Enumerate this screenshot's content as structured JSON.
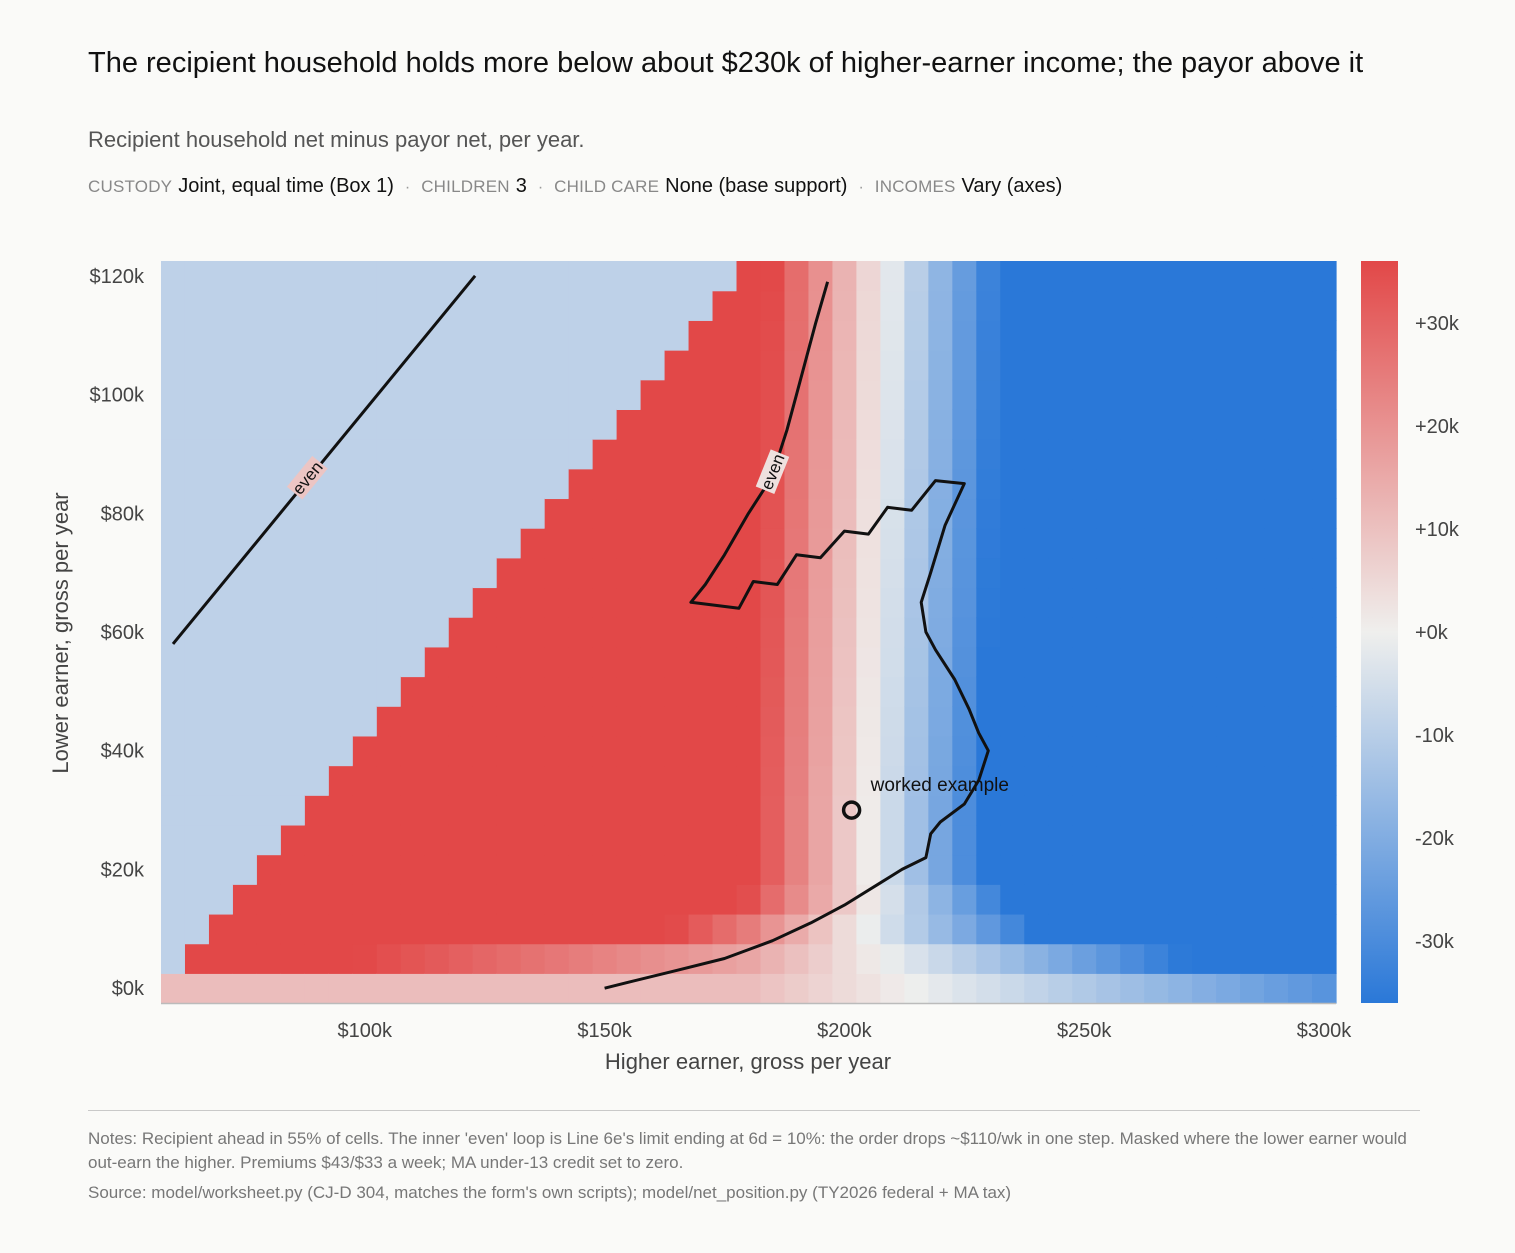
{
  "header": {
    "title": "The recipient household holds more below about $230k of higher-earner income; the payor above it",
    "subtitle": "Recipient household net minus payor net, per year."
  },
  "meta": [
    {
      "key": "CUSTODY",
      "value": "Joint, equal time (Box 1)"
    },
    {
      "key": "CHILDREN",
      "value": "3"
    },
    {
      "key": "CHILD CARE",
      "value": "None (base support)"
    },
    {
      "key": "INCOMES",
      "value": "Vary (axes)"
    }
  ],
  "chart_data": {
    "type": "heatmap",
    "xlabel": "Higher earner, gross per year",
    "ylabel": "Lower earner, gross per year",
    "x_ticks": [
      {
        "value": 100000,
        "label": "$100k"
      },
      {
        "value": 150000,
        "label": "$150k"
      },
      {
        "value": 200000,
        "label": "$200k"
      },
      {
        "value": 250000,
        "label": "$250k"
      },
      {
        "value": 300000,
        "label": "$300k"
      }
    ],
    "y_ticks": [
      {
        "value": 0,
        "label": "$0k"
      },
      {
        "value": 20000,
        "label": "$20k"
      },
      {
        "value": 40000,
        "label": "$40k"
      },
      {
        "value": 60000,
        "label": "$60k"
      },
      {
        "value": 80000,
        "label": "$80k"
      },
      {
        "value": 100000,
        "label": "$100k"
      },
      {
        "value": 120000,
        "label": "$120k"
      }
    ],
    "xlim": [
      57500,
      302500
    ],
    "ylim": [
      -2500,
      122500
    ],
    "grid": {
      "x_start": 60000,
      "x_step": 5000,
      "x_count": 49,
      "y_start": 0,
      "y_step": 5000,
      "y_count": 25
    },
    "colorbar": {
      "range": [
        -36000,
        36000
      ],
      "ticks": [
        {
          "value": 30000,
          "label": "+30k"
        },
        {
          "value": 20000,
          "label": "+20k"
        },
        {
          "value": 10000,
          "label": "+10k"
        },
        {
          "value": 0,
          "label": "+0k"
        },
        {
          "value": -10000,
          "label": "-10k"
        },
        {
          "value": -20000,
          "label": "-20k"
        },
        {
          "value": -30000,
          "label": "-30k"
        }
      ],
      "colors": {
        "negative": "#2a78d8",
        "zero": "#efefed",
        "positive": "#e24848"
      }
    },
    "contours": [
      {
        "label": "even",
        "label_at": [
          88000,
          86000
        ],
        "points": [
          [
            60000,
            58000
          ],
          [
            123000,
            120000
          ]
        ]
      },
      {
        "label": "even",
        "label_at": [
          185000,
          87000
        ],
        "points": [
          [
            196500,
            119000
          ],
          [
            194000,
            112000
          ],
          [
            190000,
            100000
          ],
          [
            188000,
            94000
          ],
          [
            186000,
            89000
          ],
          [
            184000,
            85000
          ],
          [
            180000,
            80000
          ],
          [
            175000,
            73000
          ],
          [
            171000,
            68000
          ],
          [
            168000,
            65000
          ],
          [
            178000,
            64000
          ],
          [
            181000,
            68500
          ],
          [
            186000,
            68000
          ],
          [
            190000,
            73000
          ],
          [
            195000,
            72500
          ],
          [
            200000,
            77000
          ],
          [
            205000,
            76500
          ],
          [
            209000,
            81000
          ],
          [
            214000,
            80500
          ],
          [
            219000,
            85500
          ],
          [
            225000,
            85000
          ],
          [
            221000,
            78000
          ],
          [
            218000,
            70000
          ],
          [
            216000,
            65000
          ],
          [
            217000,
            60000
          ],
          [
            219000,
            57000
          ],
          [
            223000,
            52000
          ],
          [
            226000,
            47000
          ],
          [
            228000,
            43000
          ],
          [
            230000,
            40000
          ],
          [
            228000,
            35000
          ],
          [
            225000,
            31000
          ],
          [
            220000,
            28000
          ],
          [
            218000,
            26000
          ],
          [
            217000,
            22000
          ],
          [
            212000,
            20000
          ],
          [
            207000,
            17500
          ],
          [
            200000,
            14000
          ],
          [
            193000,
            11000
          ],
          [
            185000,
            8000
          ],
          [
            180000,
            6500
          ],
          [
            175000,
            5000
          ],
          [
            165000,
            3000
          ],
          [
            155000,
            1000
          ],
          [
            150000,
            0
          ]
        ]
      }
    ],
    "annotation": {
      "label": "worked example",
      "x": 201500,
      "y": 30000
    }
  },
  "footer": {
    "notes": "Notes: Recipient ahead in 55% of cells. The inner 'even' loop is Line 6e's limit ending at 6d = 10%: the order drops ~$110/wk in one step. Masked where the lower earner would out-earn the higher. Premiums $43/$33 a week; MA under-13 credit set to zero.",
    "source": "Source: model/worksheet.py (CJ-D 304, matches the form's own scripts); model/net_position.py (TY2026 federal + MA tax)"
  }
}
